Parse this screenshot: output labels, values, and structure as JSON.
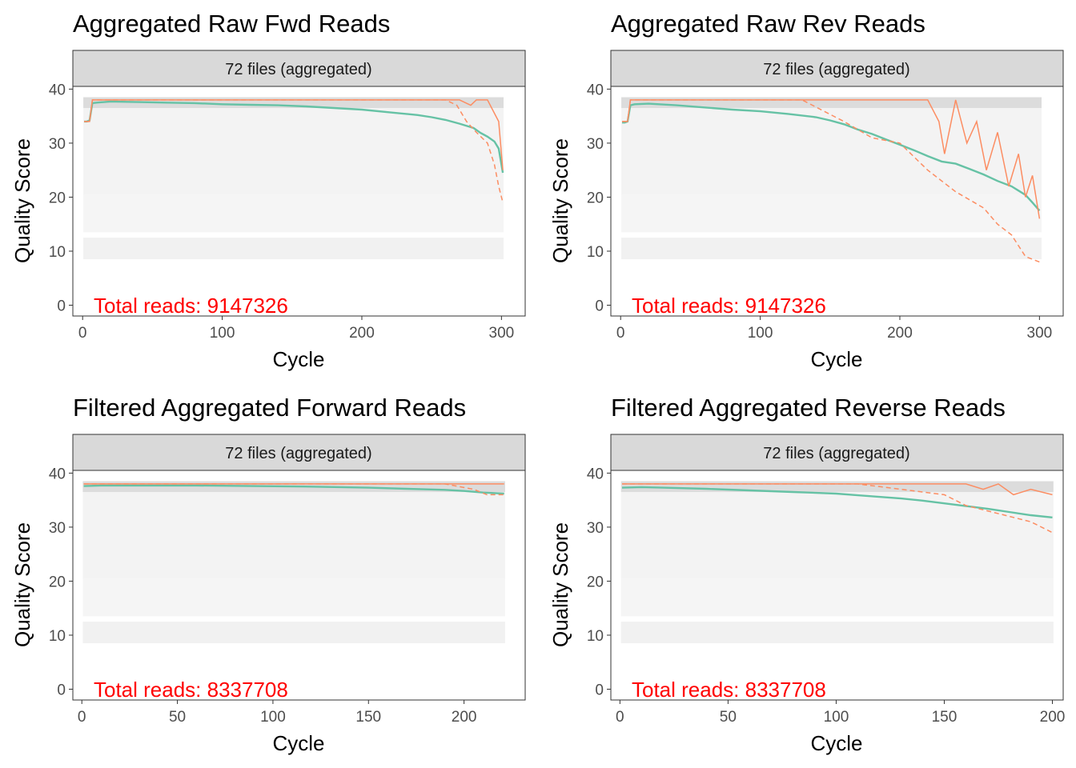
{
  "chart_data": [
    {
      "type": "heatmap",
      "title": "Aggregated Raw Fwd Reads",
      "strip": "72 files (aggregated)",
      "xlabel": "Cycle",
      "ylabel": "Quality Score",
      "xlim": [
        -7,
        317
      ],
      "ylim": [
        -2,
        40.5
      ],
      "xticks": [
        0,
        100,
        200,
        300
      ],
      "yticks": [
        0,
        10,
        20,
        30,
        40
      ],
      "annotation": "Total reads: 9147326",
      "max_cycle": 301,
      "series": [
        {
          "name": "mean",
          "color": "#66c2a5",
          "x": [
            1,
            3,
            5,
            7,
            10,
            20,
            40,
            60,
            80,
            100,
            120,
            140,
            160,
            180,
            200,
            220,
            240,
            250,
            260,
            270,
            280,
            285,
            290,
            295,
            298,
            301
          ],
          "y": [
            34,
            34,
            34.2,
            37.4,
            37.5,
            37.7,
            37.6,
            37.5,
            37.4,
            37.2,
            37.1,
            37.0,
            36.8,
            36.5,
            36.2,
            35.7,
            35.2,
            34.8,
            34.3,
            33.6,
            32.8,
            31.9,
            31.2,
            30.3,
            29.0,
            24.5
          ]
        },
        {
          "name": "median",
          "color": "#fc8d62",
          "x": [
            1,
            5,
            7,
            270,
            278,
            282,
            290,
            294,
            298,
            301
          ],
          "y": [
            34,
            34,
            38,
            38,
            37,
            38,
            38,
            36,
            34,
            25
          ]
        },
        {
          "name": "q25",
          "color": "#fc8d62",
          "dash": true,
          "x": [
            1,
            5,
            7,
            200,
            260,
            268,
            275,
            282,
            290,
            295,
            298,
            301
          ],
          "y": [
            34,
            34,
            38,
            38,
            38,
            37,
            34,
            32,
            30,
            26,
            22,
            19
          ]
        }
      ]
    },
    {
      "type": "heatmap",
      "title": "Aggregated Raw Rev Reads",
      "strip": "72 files (aggregated)",
      "xlabel": "Cycle",
      "ylabel": "Quality Score",
      "xlim": [
        -7,
        317
      ],
      "ylim": [
        -2,
        40.5
      ],
      "xticks": [
        0,
        100,
        200,
        300
      ],
      "yticks": [
        0,
        10,
        20,
        30,
        40
      ],
      "annotation": "Total reads: 9147326",
      "max_cycle": 301,
      "series": [
        {
          "name": "mean",
          "color": "#66c2a5",
          "x": [
            1,
            3,
            5,
            7,
            10,
            20,
            40,
            60,
            80,
            100,
            120,
            140,
            150,
            160,
            170,
            180,
            190,
            200,
            210,
            220,
            230,
            240,
            250,
            260,
            270,
            280,
            290,
            295,
            300
          ],
          "y": [
            33.8,
            33.8,
            34,
            37,
            37.2,
            37.3,
            37.0,
            36.6,
            36.2,
            35.9,
            35.4,
            34.8,
            34.2,
            33.5,
            32.5,
            31.7,
            30.7,
            29.7,
            28.7,
            27.6,
            26.6,
            26.2,
            25.2,
            24.2,
            23.0,
            22.0,
            20.4,
            19.0,
            17.5
          ]
        },
        {
          "name": "median",
          "color": "#fc8d62",
          "x": [
            1,
            5,
            7,
            180,
            220,
            228,
            232,
            240,
            248,
            255,
            262,
            270,
            278,
            285,
            290,
            295,
            300
          ],
          "y": [
            34,
            34,
            38,
            38,
            38,
            34,
            28,
            38,
            30,
            34,
            25,
            32,
            22,
            28,
            20,
            24,
            16
          ]
        },
        {
          "name": "q25",
          "color": "#fc8d62",
          "dash": true,
          "x": [
            1,
            5,
            7,
            130,
            160,
            180,
            200,
            220,
            240,
            260,
            270,
            280,
            290,
            300
          ],
          "y": [
            34,
            34,
            38,
            38,
            34,
            31,
            30,
            25,
            21,
            18,
            15,
            13,
            9,
            8
          ]
        }
      ]
    },
    {
      "type": "heatmap",
      "title": "Filtered Aggregated Forward Reads",
      "strip": "72 files (aggregated)",
      "xlabel": "Cycle",
      "ylabel": "Quality Score",
      "xlim": [
        -4.7,
        232
      ],
      "ylim": [
        -2,
        40.5
      ],
      "xticks": [
        0,
        50,
        100,
        150,
        200
      ],
      "yticks": [
        0,
        10,
        20,
        30,
        40
      ],
      "annotation": "Total reads: 8337708",
      "max_cycle": 221,
      "series": [
        {
          "name": "mean",
          "color": "#66c2a5",
          "x": [
            1,
            10,
            30,
            60,
            90,
            120,
            150,
            170,
            190,
            200,
            210,
            221
          ],
          "y": [
            37.6,
            37.7,
            37.7,
            37.7,
            37.6,
            37.5,
            37.3,
            37.1,
            36.9,
            36.7,
            36.4,
            36.2
          ]
        },
        {
          "name": "median",
          "color": "#fc8d62",
          "x": [
            1,
            221
          ],
          "y": [
            38,
            38
          ]
        },
        {
          "name": "q25",
          "color": "#fc8d62",
          "dash": true,
          "x": [
            1,
            150,
            190,
            205,
            212,
            221
          ],
          "y": [
            38,
            38,
            38,
            37,
            36,
            36
          ]
        }
      ]
    },
    {
      "type": "heatmap",
      "title": "Filtered Aggregated Reverse Reads",
      "strip": "72 files (aggregated)",
      "xlabel": "Cycle",
      "ylabel": "Quality Score",
      "xlim": [
        -4.2,
        205
      ],
      "ylim": [
        -2,
        40.5
      ],
      "xticks": [
        0,
        50,
        100,
        150,
        200
      ],
      "yticks": [
        0,
        10,
        20,
        30,
        40
      ],
      "annotation": "Total reads: 8337708",
      "max_cycle": 200,
      "series": [
        {
          "name": "mean",
          "color": "#66c2a5",
          "x": [
            1,
            10,
            20,
            40,
            60,
            80,
            100,
            110,
            120,
            130,
            140,
            150,
            160,
            170,
            180,
            190,
            200
          ],
          "y": [
            37.3,
            37.4,
            37.3,
            37.1,
            36.8,
            36.5,
            36.2,
            35.9,
            35.6,
            35.3,
            34.9,
            34.4,
            33.9,
            33.4,
            32.8,
            32.2,
            31.8
          ]
        },
        {
          "name": "median",
          "color": "#fc8d62",
          "x": [
            1,
            160,
            168,
            175,
            182,
            190,
            200
          ],
          "y": [
            38,
            38,
            37,
            38,
            36,
            37,
            36
          ]
        },
        {
          "name": "q25",
          "color": "#fc8d62",
          "dash": true,
          "x": [
            1,
            110,
            130,
            150,
            160,
            170,
            180,
            190,
            200
          ],
          "y": [
            38,
            38,
            37,
            36,
            34,
            33,
            32,
            31,
            29
          ]
        }
      ]
    }
  ]
}
